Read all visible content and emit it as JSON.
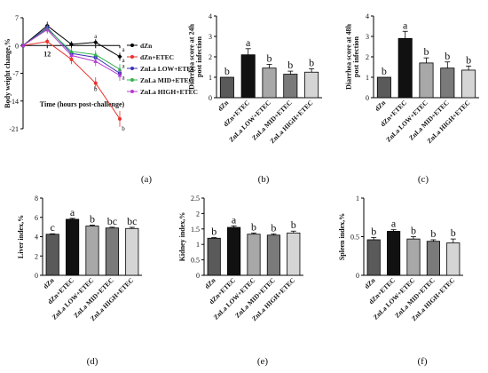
{
  "colors": {
    "dZn": "#000000",
    "dZn+ETEC": "#e8322b",
    "ZnLa LOW+ETEC": "#3a33b5",
    "ZnLa MID+ETEC": "#31b34b",
    "ZnLa HIGH+ETEC": "#b63bd1",
    "bar_fills": [
      "#5a5a5a",
      "#111111",
      "#a8a8a8",
      "#7a7a7a",
      "#d5d5d5"
    ]
  },
  "chart_data": [
    {
      "panel": "(a)",
      "type": "line",
      "xlabel": "Time (hours post-challenge)",
      "ylabel": "Body weight change,%",
      "ylim": [
        -21,
        7
      ],
      "y_ticks": [
        "7",
        "0",
        "-7",
        "-14",
        "-21"
      ],
      "x_tick_labels": [
        "12"
      ],
      "x": [
        0,
        12,
        24,
        36,
        48
      ],
      "legend_placement": "right",
      "series": [
        {
          "name": "dZn",
          "values": [
            0,
            5,
            0.3,
            0.8,
            -2.8
          ],
          "errors": [
            0,
            1,
            0.8,
            0.8,
            1.0
          ]
        },
        {
          "name": "dZn+ETEC",
          "values": [
            0,
            1.0,
            -3.5,
            -9.5,
            -18.5
          ],
          "errors": [
            0,
            0.8,
            1.2,
            1.5,
            2.0
          ]
        },
        {
          "name": "ZnLa LOW+ETEC",
          "values": [
            0,
            4.5,
            -2.0,
            -3.0,
            -7.0
          ],
          "errors": [
            0,
            1,
            1.0,
            1.2,
            1.2
          ]
        },
        {
          "name": "ZnLa MID+ETEC",
          "values": [
            0,
            4.2,
            -1.5,
            -2.3,
            -6.0
          ],
          "errors": [
            0,
            1,
            1.0,
            1.1,
            1.3
          ]
        },
        {
          "name": "ZnLa HIGH+ETEC",
          "values": [
            0,
            4.0,
            -2.5,
            -4.0,
            -7.5
          ],
          "errors": [
            0,
            1,
            1.1,
            1.2,
            1.4
          ]
        }
      ],
      "annotations": [
        {
          "text": "a",
          "x": 36,
          "y": 1.9
        },
        {
          "text": "a",
          "x": 48,
          "y": -1.5
        },
        {
          "text": "a",
          "x": 48,
          "y": -4.2
        },
        {
          "text": "a",
          "x": 48,
          "y": -5.6
        },
        {
          "text": "a",
          "x": 48,
          "y": -8.6
        },
        {
          "text": "b",
          "x": 36,
          "y": -11.5
        },
        {
          "text": "b",
          "x": 48,
          "y": -21.5
        }
      ]
    },
    {
      "panel": "(b)",
      "type": "bar",
      "ylabel": "Diarrhea score at 24h post infection",
      "categories": [
        "dZn",
        "dZn+ETEC",
        "ZnLa LOW+ETEC",
        "ZnLa MID+ETEC",
        "ZnLa HIGH+ETEC"
      ],
      "values": [
        1.0,
        2.1,
        1.45,
        1.15,
        1.25
      ],
      "errors": [
        0,
        0.3,
        0.18,
        0.15,
        0.17
      ],
      "sig_letters": [
        "b",
        "a",
        "b",
        "b",
        "b"
      ],
      "ylim": [
        0,
        4
      ],
      "y_ticks": [
        0,
        1,
        2,
        3,
        4
      ]
    },
    {
      "panel": "(c)",
      "type": "bar",
      "ylabel": "Diarrhea score at 48h post infection",
      "categories": [
        "dZn",
        "dZn+ETEC",
        "ZnLa LOW+ETEC",
        "ZnLa MID+ETEC",
        "ZnLa HIGH+ETEC"
      ],
      "values": [
        1.0,
        2.9,
        1.7,
        1.45,
        1.35
      ],
      "errors": [
        0,
        0.35,
        0.25,
        0.3,
        0.2
      ],
      "sig_letters": [
        "b",
        "a",
        "b",
        "b",
        "b"
      ],
      "ylim": [
        0,
        4
      ],
      "y_ticks": [
        0,
        1,
        2,
        3,
        4
      ]
    },
    {
      "panel": "(d)",
      "type": "bar",
      "ylabel": "Liver index,%",
      "categories": [
        "dZn",
        "dZn+ETEC",
        "ZnLa LOW+ETEC",
        "ZnLa MID+ETEC",
        "ZnLa HIGH+ETEC"
      ],
      "values": [
        4.25,
        5.8,
        5.1,
        4.9,
        4.85
      ],
      "errors": [
        0.05,
        0.1,
        0.1,
        0.08,
        0.12
      ],
      "sig_letters": [
        "c",
        "a",
        "b",
        "bc",
        "bc"
      ],
      "ylim": [
        0,
        8
      ],
      "y_ticks": [
        0,
        2,
        4,
        6,
        8
      ]
    },
    {
      "panel": "(e)",
      "type": "bar",
      "ylabel": "Kidney index,%",
      "categories": [
        "dZn",
        "dZn+ETEC",
        "ZnLa LOW+ETEC",
        "ZnLa MID+ETEC",
        "ZnLa HIGH+ETEC"
      ],
      "values": [
        1.2,
        1.55,
        1.33,
        1.3,
        1.37
      ],
      "errors": [
        0.02,
        0.05,
        0.04,
        0.04,
        0.06
      ],
      "sig_letters": [
        "b",
        "a",
        "b",
        "b",
        "b"
      ],
      "ylim": [
        0,
        2.5
      ],
      "y_ticks": [
        0,
        0.5,
        1,
        1.5,
        2,
        2.5
      ],
      "y_tick_labels": [
        "0",
        "0.5",
        "1",
        "1.5",
        "2",
        "2.5"
      ]
    },
    {
      "panel": "(f)",
      "type": "bar",
      "ylabel": "Spleen index,%",
      "categories": [
        "dZn",
        "dZn+ETEC",
        "ZnLa LOW+ETEC",
        "ZnLa MID+ETEC",
        "ZnLa HIGH+ETEC"
      ],
      "values": [
        0.46,
        0.57,
        0.47,
        0.44,
        0.42
      ],
      "errors": [
        0.03,
        0.02,
        0.03,
        0.02,
        0.05
      ],
      "sig_letters": [
        "b",
        "a",
        "b",
        "b",
        "b"
      ],
      "ylim": [
        0,
        1
      ],
      "y_ticks": [
        0,
        0.5,
        1
      ],
      "y_tick_labels": [
        "0",
        "0.5",
        "1"
      ]
    }
  ]
}
